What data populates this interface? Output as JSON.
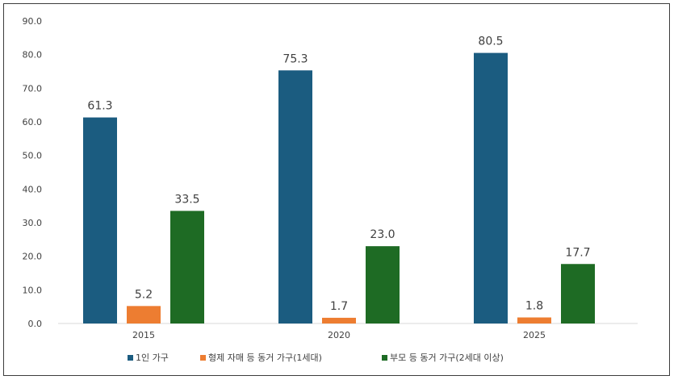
{
  "chart_data": {
    "type": "bar",
    "title": "",
    "xlabel": "",
    "ylabel": "",
    "categories": [
      "2015",
      "2020",
      "2025"
    ],
    "series": [
      {
        "name": "1인 가구",
        "values": [
          61.3,
          75.3,
          80.5
        ],
        "color": "#1b5c80",
        "labels": [
          "61.3",
          "75.3",
          "80.5"
        ]
      },
      {
        "name": "형제 자매 등 동거 가구(1세대)",
        "values": [
          5.2,
          1.7,
          1.8
        ],
        "color": "#ed7d31",
        "labels": [
          "5.2",
          "1.7",
          "1.8"
        ]
      },
      {
        "name": "부모 등 동거 가구(2세대 이상)",
        "values": [
          33.5,
          23.0,
          17.7
        ],
        "color": "#1e6b24",
        "labels": [
          "33.5",
          "23.0",
          "17.7"
        ]
      }
    ],
    "ylim": [
      0,
      90
    ],
    "yticks": [
      "0.0",
      "10.0",
      "20.0",
      "30.0",
      "40.0",
      "50.0",
      "60.0",
      "70.0",
      "80.0",
      "90.0"
    ],
    "grid": false,
    "legend_position": "bottom"
  }
}
